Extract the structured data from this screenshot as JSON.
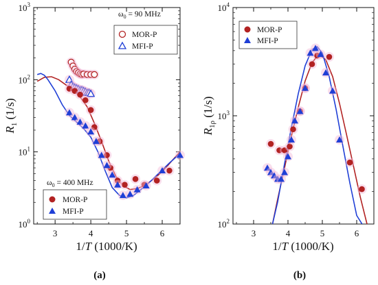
{
  "chart_data": [
    {
      "type": "scatter",
      "panel_label": "(a)",
      "xlabel": "1/T (1000/K)",
      "ylabel": "R1 (1/s)",
      "ylabel_main": "R",
      "ylabel_sub": "1",
      "ylabel_unit": " (1/s)",
      "xlabel_var": "1/",
      "xlabel_T": "T",
      "xlabel_unit": " (1000/K)",
      "xlim": [
        2.4,
        6.5
      ],
      "ylim": [
        1,
        1000
      ],
      "yscale": "log",
      "xticks": [
        3,
        4,
        5,
        6
      ],
      "yticks": [
        {
          "value": 1,
          "base": "10",
          "exp": "0"
        },
        {
          "value": 10,
          "base": "10",
          "exp": "1"
        },
        {
          "value": 100,
          "base": "10",
          "exp": "2"
        },
        {
          "value": 1000,
          "base": "10",
          "exp": "3"
        }
      ],
      "annotations": [
        {
          "text": "ω0 = 90 MHz",
          "omega": "ω",
          "sub": "0",
          "rest": " = 90 MHz"
        },
        {
          "text": "ω0 = 400 MHz",
          "omega": "ω",
          "sub": "0",
          "rest": " = 400 MHz"
        }
      ],
      "legend_top": [
        "MOR-P",
        "MFI-P"
      ],
      "legend_bottom": [
        "MOR-P",
        "MFI-P"
      ],
      "series": [
        {
          "name": "MOR-P",
          "group": "90 MHz",
          "marker": "open-circle",
          "color": "#b22222",
          "x": [
            3.45,
            3.5,
            3.55,
            3.6,
            3.65,
            3.7,
            3.75,
            3.8,
            3.9,
            4.0,
            4.1
          ],
          "y": [
            175,
            155,
            140,
            130,
            125,
            120,
            118,
            120,
            118,
            118,
            118
          ]
        },
        {
          "name": "MFI-P",
          "group": "90 MHz",
          "marker": "open-triangle",
          "color": "#1f3fd6",
          "x": [
            3.4,
            3.45,
            3.5,
            3.55,
            3.6,
            3.65,
            3.7,
            3.75,
            3.8,
            3.85,
            3.9,
            3.95,
            4.0
          ],
          "y": [
            100,
            85,
            80,
            78,
            76,
            74,
            72,
            72,
            70,
            68,
            66,
            66,
            64
          ]
        },
        {
          "name": "MOR-P",
          "group": "400 MHz",
          "marker": "filled-circle",
          "color": "#b22222",
          "x": [
            3.4,
            3.55,
            3.7,
            3.85,
            4.0,
            4.1,
            4.25,
            4.45,
            4.55,
            4.75,
            4.95,
            5.25,
            5.5,
            5.85,
            6.2
          ],
          "y": [
            75,
            70,
            62,
            52,
            38,
            22,
            14,
            9,
            6,
            4.0,
            3.5,
            4.2,
            3.5,
            4.0,
            5.5
          ]
        },
        {
          "name": "MFI-P",
          "group": "400 MHz",
          "marker": "filled-triangle",
          "color": "#1f3fd6",
          "x": [
            3.4,
            3.55,
            3.7,
            3.85,
            4.0,
            4.15,
            4.3,
            4.45,
            4.6,
            4.75,
            4.9,
            5.1,
            5.3,
            5.55,
            6.0,
            6.5
          ],
          "y": [
            35,
            30,
            26,
            23,
            19,
            14,
            9,
            6.5,
            4.8,
            3.5,
            2.5,
            2.6,
            3.0,
            3.4,
            5.5,
            9.0
          ]
        },
        {
          "name": "MOR-P fit",
          "group": "400 MHz",
          "marker": "line",
          "color": "#b22222",
          "x": [
            2.5,
            2.7,
            2.9,
            3.1,
            3.3,
            3.5,
            3.7,
            3.9,
            4.1,
            4.3,
            4.5,
            4.7,
            4.9,
            5.1,
            5.3,
            5.5,
            5.7,
            5.9,
            6.1,
            6.3,
            6.5
          ],
          "y": [
            95,
            108,
            110,
            100,
            85,
            72,
            58,
            42,
            25,
            14,
            7.5,
            4.6,
            3.4,
            3.0,
            3.1,
            3.4,
            4.0,
            4.8,
            6.0,
            7.8,
            10
          ]
        },
        {
          "name": "MFI-P fit",
          "group": "400 MHz",
          "marker": "line",
          "color": "#1f3fd6",
          "x": [
            2.5,
            2.6,
            2.7,
            2.8,
            3.0,
            3.2,
            3.4,
            3.6,
            3.8,
            4.0,
            4.2,
            4.4,
            4.6,
            4.8,
            5.0,
            5.2,
            5.4,
            5.6,
            5.8,
            6.0,
            6.2,
            6.5
          ],
          "y": [
            118,
            122,
            115,
            100,
            70,
            45,
            32,
            26,
            21,
            16,
            10,
            5.5,
            3.2,
            2.5,
            2.3,
            2.5,
            3.0,
            3.6,
            4.5,
            5.6,
            7.0,
            9.5
          ]
        }
      ]
    },
    {
      "type": "scatter",
      "panel_label": "(b)",
      "xlabel": "1/T (1000/K)",
      "ylabel": "R1ρ (1/s)",
      "ylabel_main": "R",
      "ylabel_sub": "1ρ",
      "ylabel_unit": " (1/s)",
      "xlabel_var": "1/",
      "xlabel_T": "T",
      "xlabel_unit": " (1000/K)",
      "xlim": [
        2.4,
        6.5
      ],
      "ylim": [
        100,
        10000
      ],
      "yscale": "log",
      "xticks": [
        3,
        4,
        5,
        6
      ],
      "yticks": [
        {
          "value": 100,
          "base": "10",
          "exp": "2"
        },
        {
          "value": 1000,
          "base": "10",
          "exp": "3"
        },
        {
          "value": 10000,
          "base": "10",
          "exp": "4"
        }
      ],
      "legend": [
        "MOR-P",
        "MFI-P"
      ],
      "series": [
        {
          "name": "MOR-P",
          "marker": "filled-circle",
          "color": "#b22222",
          "x": [
            3.5,
            3.75,
            3.9,
            4.05,
            4.15,
            4.35,
            4.5,
            4.7,
            4.85,
            5.2,
            5.8,
            6.15
          ],
          "y": [
            550,
            480,
            480,
            520,
            750,
            1100,
            1800,
            3000,
            3600,
            3500,
            370,
            210
          ]
        },
        {
          "name": "MFI-P",
          "marker": "filled-triangle",
          "color": "#1f3fd6",
          "x": [
            3.4,
            3.5,
            3.6,
            3.7,
            3.8,
            3.9,
            4.0,
            4.1,
            4.2,
            4.35,
            4.5,
            4.65,
            4.8,
            4.95,
            5.1,
            5.3,
            5.5
          ],
          "y": [
            330,
            300,
            280,
            260,
            260,
            300,
            420,
            600,
            900,
            1100,
            1800,
            3800,
            4200,
            3700,
            2500,
            1700,
            600
          ]
        },
        {
          "name": "MOR-P fit",
          "marker": "line",
          "color": "#b22222",
          "x": [
            3.55,
            3.7,
            3.9,
            4.1,
            4.3,
            4.5,
            4.7,
            4.9,
            5.1,
            5.3,
            5.5,
            5.7,
            5.9,
            6.1,
            6.3
          ],
          "y": [
            100,
            170,
            330,
            650,
            1200,
            2100,
            3100,
            3700,
            3300,
            2300,
            1300,
            680,
            350,
            180,
            100
          ]
        },
        {
          "name": "MFI-P fit",
          "marker": "line",
          "color": "#1f3fd6",
          "x": [
            3.55,
            3.7,
            3.9,
            4.1,
            4.3,
            4.5,
            4.7,
            4.85,
            5.0,
            5.2,
            5.4,
            5.6,
            5.8,
            6.0,
            6.2
          ],
          "y": [
            100,
            160,
            360,
            780,
            1600,
            2900,
            4100,
            4350,
            3800,
            2300,
            1150,
            520,
            240,
            120,
            95
          ]
        }
      ]
    }
  ]
}
